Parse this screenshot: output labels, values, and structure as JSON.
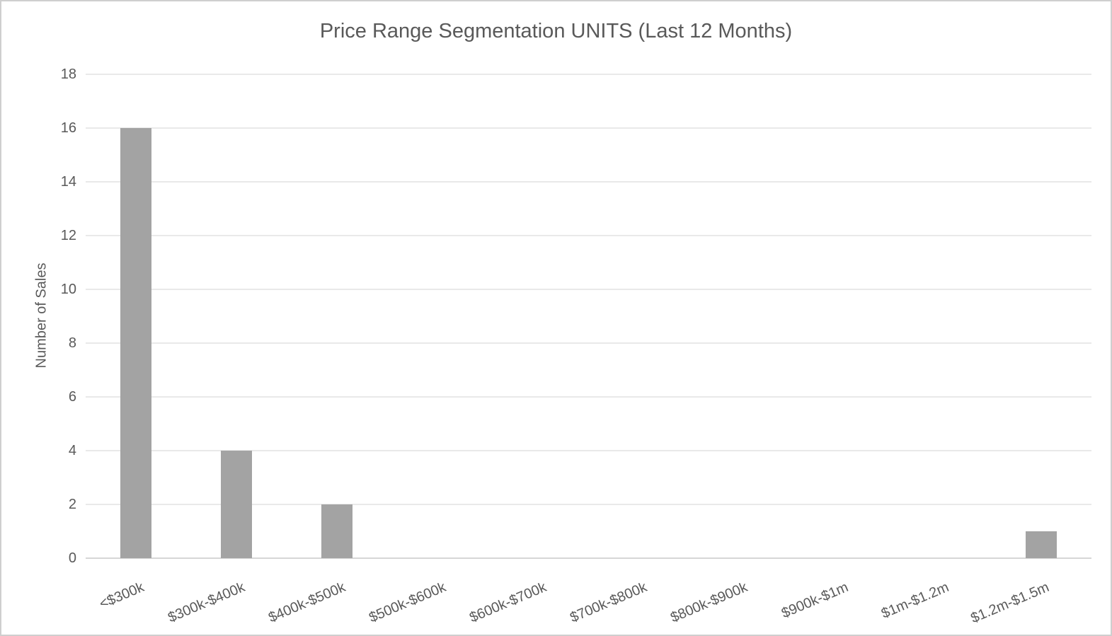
{
  "chart_data": {
    "type": "bar",
    "title": "Price Range Segmentation UNITS (Last 12 Months)",
    "xlabel": "",
    "ylabel": "Number of Sales",
    "categories": [
      "<$300k",
      "$300k-$400k",
      "$400k-$500k",
      "$500k-$600k",
      "$600k-$700k",
      "$700k-$800k",
      "$800k-$900k",
      "$900k-$1m",
      "$1m-$1.2m",
      "$1.2m-$1.5m"
    ],
    "values": [
      16,
      4,
      2,
      0,
      0,
      0,
      0,
      0,
      0,
      1
    ],
    "ylim": [
      0,
      18
    ],
    "yticks": [
      0,
      2,
      4,
      6,
      8,
      10,
      12,
      14,
      16,
      18
    ],
    "grid": true,
    "legend": false,
    "colors": {
      "bar": "#a3a3a3",
      "grid": "#e9e9e9",
      "axis": "#d6d6d6",
      "text": "#595959",
      "bg": "#ffffff",
      "border": "#cfcfcf"
    }
  }
}
